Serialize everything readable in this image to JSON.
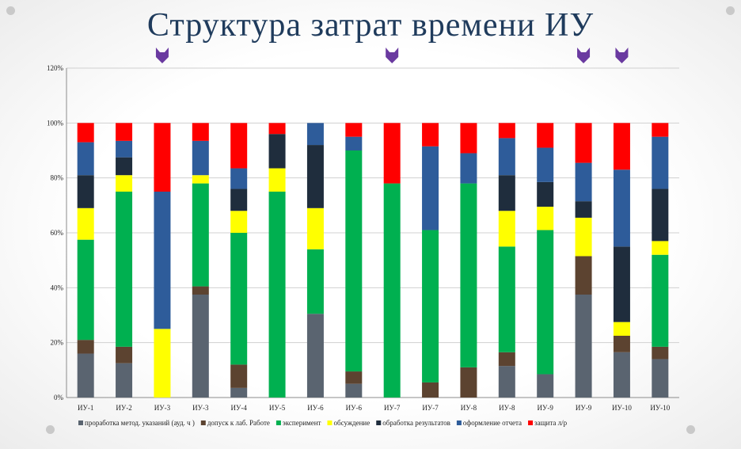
{
  "slide": {
    "title": "Структура затрат времени ИУ"
  },
  "colors": {
    "marker": "#6a3aa0",
    "title": "#1f3b5c"
  },
  "chart_data": {
    "type": "bar",
    "stacked": true,
    "percent_stacked": true,
    "title": "",
    "ylim": [
      0,
      120
    ],
    "yticks": [
      "0%",
      "20%",
      "40%",
      "60%",
      "80%",
      "100%",
      "120%"
    ],
    "grid": true,
    "legend_position": "bottom",
    "categories": [
      "ИУ-1",
      "ИУ-2",
      "ИУ-3",
      "ИУ-3",
      "ИУ-4",
      "ИУ-5",
      "ИУ-6",
      "ИУ-6",
      "ИУ-7",
      "ИУ-7",
      "ИУ-8",
      "ИУ-8",
      "ИУ-9",
      "ИУ-9",
      "ИУ-10",
      "ИУ-10"
    ],
    "marked_categories": [
      2,
      8,
      13,
      14
    ],
    "series": [
      {
        "name": "проработка метод. указаний (ауд. ч )",
        "color": "#5a6470",
        "values": [
          16,
          12.5,
          0,
          37.5,
          3.5,
          0,
          30.5,
          5,
          0,
          0,
          0,
          11.5,
          8.5,
          37.5,
          16.5,
          14
        ]
      },
      {
        "name": "допуск к лаб. Работе",
        "color": "#5c4330",
        "values": [
          5,
          6,
          0,
          3,
          8.5,
          0,
          0,
          4.5,
          0,
          5.5,
          11,
          5,
          0,
          14,
          6,
          4.5
        ]
      },
      {
        "name": "эксперимент",
        "color": "#00b050",
        "values": [
          36.5,
          56.5,
          0,
          37.5,
          48,
          75,
          23.5,
          80.5,
          78,
          55.5,
          67,
          38.5,
          52.5,
          0,
          0,
          33.5
        ]
      },
      {
        "name": "обсуждение",
        "color": "#ffff00",
        "values": [
          11.5,
          6,
          25,
          3,
          8,
          8.5,
          15,
          0,
          0,
          0,
          0,
          13,
          8.5,
          14,
          5,
          5
        ]
      },
      {
        "name": "обработка результатов",
        "color": "#1f2d3d",
        "values": [
          12,
          6.5,
          0,
          0,
          8,
          12.5,
          23,
          0,
          0,
          0,
          0,
          13,
          9,
          6,
          27.5,
          19
        ]
      },
      {
        "name": "оформление отчета",
        "color": "#2e5c9a",
        "values": [
          12,
          6,
          50,
          12.5,
          7.5,
          0,
          8,
          5,
          0,
          30.5,
          11,
          13.5,
          12.5,
          14,
          28,
          19
        ]
      },
      {
        "name": "защита л/р",
        "color": "#ff0000",
        "values": [
          7,
          6.5,
          25,
          6.5,
          16.5,
          4,
          0,
          5,
          22,
          8.5,
          11,
          5.5,
          9,
          14.5,
          17,
          5
        ]
      }
    ]
  }
}
